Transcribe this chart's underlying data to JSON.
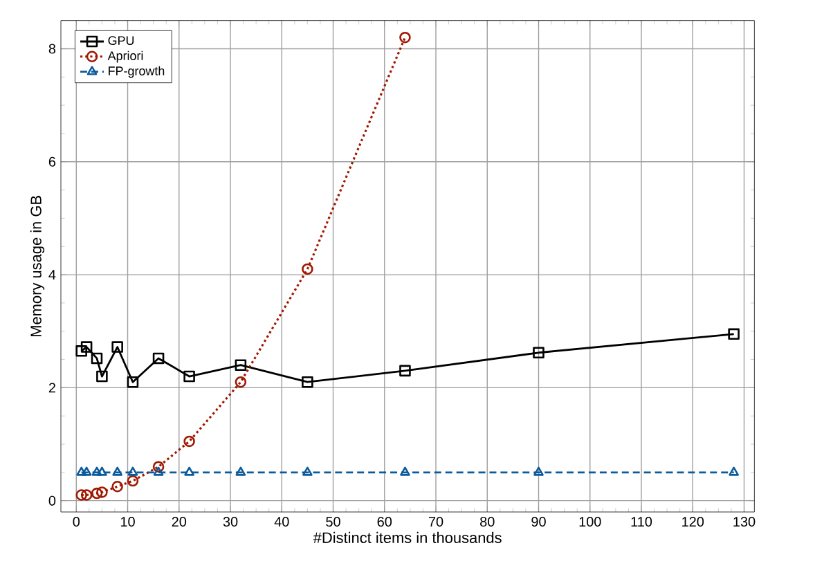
{
  "chart_data": {
    "type": "line",
    "xlabel": "#Distinct items in thousands",
    "ylabel": "Memory usage in GB",
    "xlim": [
      -3,
      132
    ],
    "ylim": [
      -0.2,
      8.5
    ],
    "xticks": [
      0,
      10,
      20,
      30,
      40,
      50,
      60,
      70,
      80,
      90,
      100,
      110,
      120,
      130
    ],
    "yticks": [
      0,
      2,
      4,
      6,
      8
    ],
    "grid": true,
    "legend": "top left",
    "series": [
      {
        "name": "GPU",
        "color": "#000000",
        "marker": "square",
        "line_style": "solid",
        "x": [
          1,
          2,
          4,
          5,
          8,
          11,
          16,
          22,
          32,
          45,
          64,
          90,
          128
        ],
        "values": [
          2.65,
          2.72,
          2.52,
          2.2,
          2.72,
          2.1,
          2.52,
          2.2,
          2.4,
          2.1,
          2.3,
          2.62,
          2.95
        ]
      },
      {
        "name": "Apriori",
        "color": "#a01800",
        "marker": "circle",
        "line_style": "dotted",
        "x": [
          1,
          2,
          4,
          5,
          8,
          11,
          16,
          22,
          32,
          45,
          64
        ],
        "values": [
          0.1,
          0.1,
          0.13,
          0.15,
          0.25,
          0.35,
          0.6,
          1.05,
          2.1,
          4.1,
          8.2
        ]
      },
      {
        "name": "FP-growth",
        "color": "#0a5a9c",
        "marker": "triangle",
        "line_style": "dashed",
        "x": [
          1,
          2,
          4,
          5,
          8,
          11,
          16,
          22,
          32,
          45,
          64,
          90,
          128
        ],
        "values": [
          0.5,
          0.5,
          0.5,
          0.5,
          0.5,
          0.5,
          0.5,
          0.5,
          0.5,
          0.5,
          0.5,
          0.5,
          0.5
        ]
      }
    ]
  }
}
